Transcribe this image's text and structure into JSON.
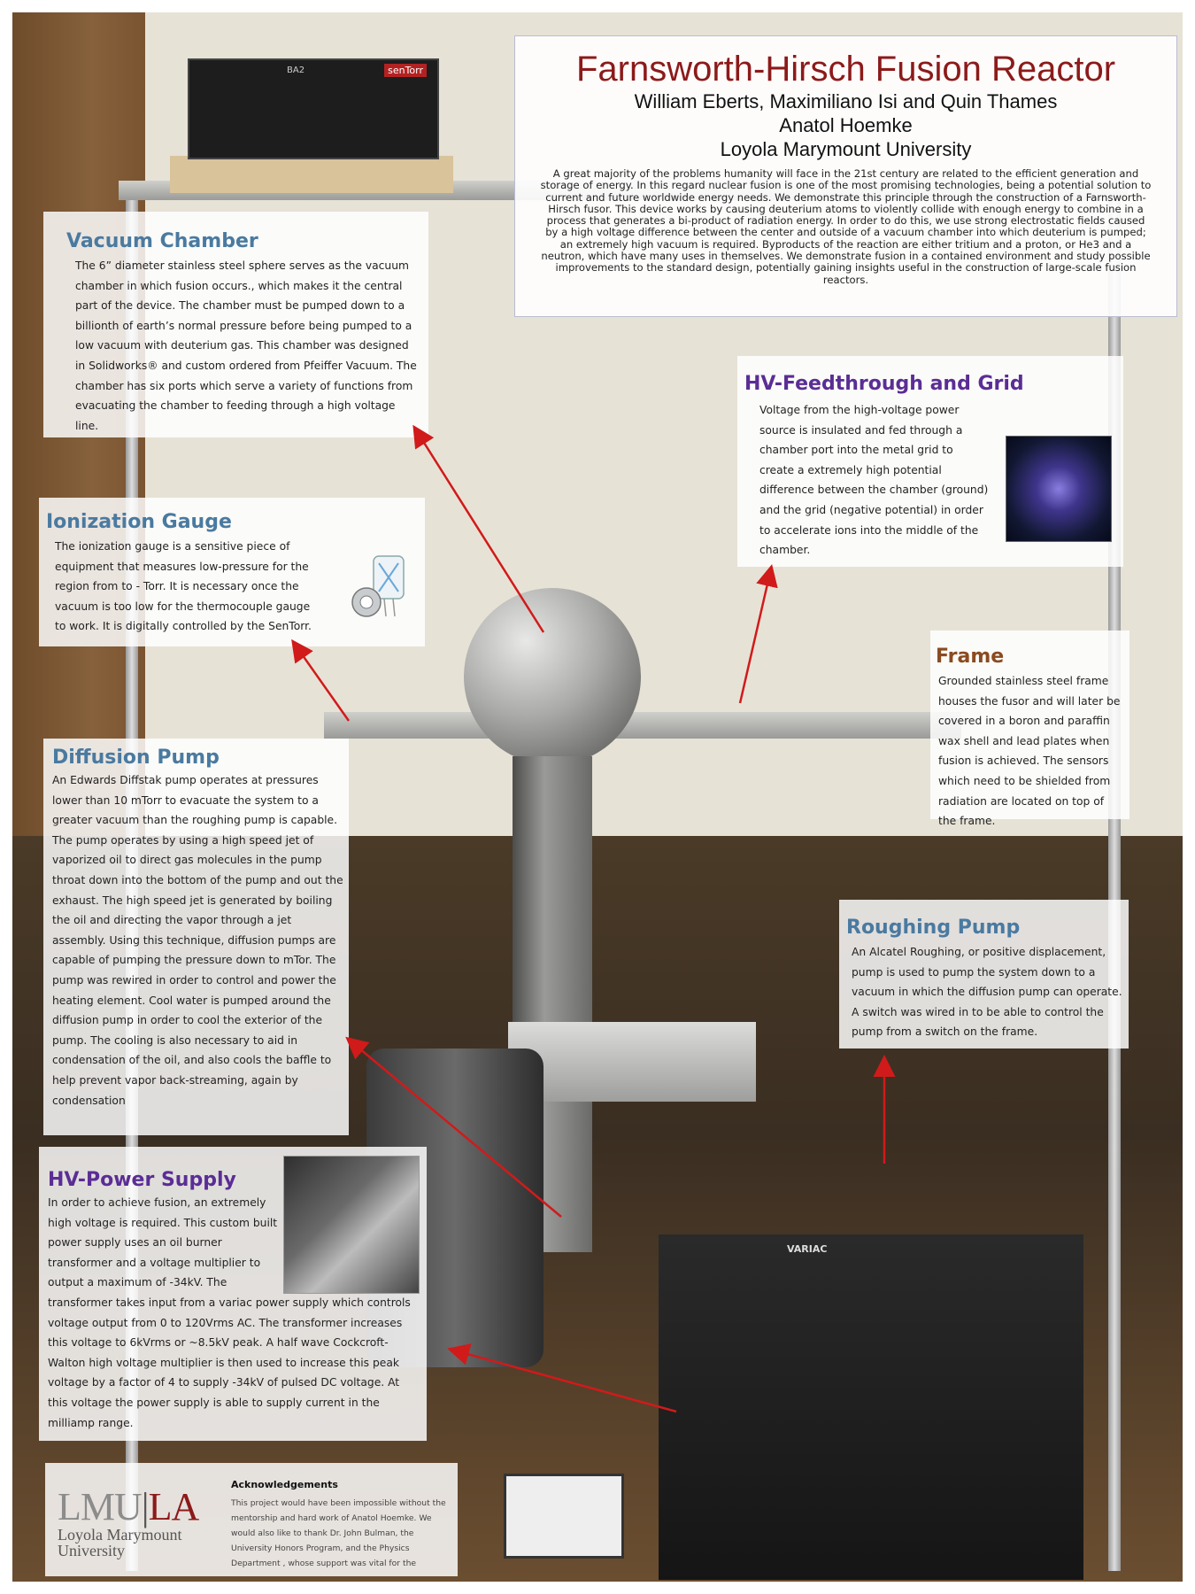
{
  "title": {
    "heading": "Farnsworth-Hirsch Fusion Reactor",
    "authors": "William Eberts, Maximiliano Isi and Quin Thames",
    "advisor": "Anatol Hoemke",
    "institution": "Loyola Marymount University",
    "abstract": "A great majority of the problems humanity will face in the 21st century are related to the efficient generation and storage of energy. In this regard nuclear fusion is one of the most promising technologies, being a potential solution to current and future worldwide energy needs. We demonstrate this principle through the construction of a Farnsworth-Hirsch fusor. This device works by causing deuterium atoms to violently collide with enough energy to combine in a process that generates a bi-product of radiation energy. In order to do this, we use strong electrostatic fields caused by a high voltage difference between the center and outside of a vacuum chamber into which deuterium is pumped; an extremely high vacuum is required. Byproducts of the reaction are either tritium and a proton, or He3 and a neutron, which have many uses in themselves. We demonstrate fusion in a contained environment and study possible improvements to the standard design, potentially gaining insights useful in the construction of large-scale fusion reactors."
  },
  "sections": {
    "vacuum_chamber": {
      "title": "Vacuum Chamber",
      "body": "The 6” diameter stainless steel sphere serves as the vacuum chamber in which fusion occurs., which makes it the central part of the device.  The chamber must be pumped down to a billionth of earth’s normal pressure before being pumped to a low vacuum with deuterium gas.  This chamber was designed in Solidworks® and custom ordered from Pfeiffer Vacuum.  The chamber has six ports which serve a variety of functions from evacuating the chamber to feeding through a high voltage line."
    },
    "ionization_gauge": {
      "title": "Ionization Gauge",
      "body": "The ionization gauge is a sensitive piece of equipment that measures low-pressure for the region from  to - Torr. It is necessary once the vacuum is too low for the thermocouple gauge to work. It is digitally controlled by the SenTorr."
    },
    "diffusion_pump": {
      "title": "Diffusion Pump",
      "body": "An Edwards Diffstak pump operates at pressures lower than 10 mTorr to evacuate the system to a greater vacuum than the roughing pump is capable.  The pump operates by using a high speed jet of vaporized oil to direct gas molecules in the pump throat down into the bottom of the pump and out the exhaust. The high speed jet is generated by boiling the oil and directing the vapor through a jet assembly. Using this technique, diffusion pumps are capable of pumping the pressure down to mTor. The pump was rewired in order to control and power the heating element.  Cool water is pumped around the diffusion pump in order to cool the exterior of the pump. The cooling is also necessary to aid in condensation of the oil, and also cools the baffle to help prevent vapor back-streaming, again by condensation"
    },
    "hv_power_supply": {
      "title": "HV-Power Supply",
      "body_top": "In order to achieve fusion, an extremely high voltage is required. This custom built power supply uses an oil burner transformer and a voltage multiplier to output a maximum of -34kV.  The",
      "body_bottom": " transformer takes input from a variac power supply which controls voltage output from 0 to 120Vrms AC.  The transformer increases this voltage to 6kVrms or ~8.5kV peak.  A half wave Cockcroft-Walton high voltage multiplier is then used to increase this peak voltage by a factor of 4 to supply -34kV of pulsed DC voltage.  At this voltage the power supply is able to supply current in the milliamp range."
    },
    "hv_feedthrough": {
      "title": "HV-Feedthrough and Grid",
      "body": "Voltage from the high-voltage power source is insulated and fed through a chamber port into the metal grid to create a extremely high potential difference between the chamber (ground) and the grid (negative potential) in order to accelerate ions into the middle of the chamber."
    },
    "frame": {
      "title": "Frame",
      "body": "Grounded stainless steel frame houses the fusor and will later be covered in a boron and paraffin wax shell and lead plates when fusion is achieved. The sensors which need to be shielded from radiation are located on top of the frame."
    },
    "roughing_pump": {
      "title": "Roughing Pump",
      "body": "An Alcatel Roughing, or positive displacement, pump is used to pump the system down to a vacuum in which the diffusion pump can operate.  A switch was wired in to be able to control the pump from a switch on the frame."
    }
  },
  "acknowledgements": {
    "title": "Acknowledgements",
    "body": "This project would have been impossible without the mentorship and hard work of Anatol Hoemke. We would also like to thank  Dr. John Bulman, the University Honors Program, and the Physics Department , whose support was vital for the"
  },
  "logo": {
    "lmu": "LMU",
    "la": "LA",
    "university_line1": "Loyola Marymount",
    "university_line2": "University"
  },
  "photo_labels": {
    "controller_brand": "senTorr",
    "controller_model": "BA2",
    "variac_label": "VARIAC"
  },
  "colors": {
    "title_red": "#8c1a1a",
    "section_blue": "#4a7aa0",
    "section_purple": "#5b2d95",
    "section_brown": "#8a4b20",
    "arrow_red": "#d11a1a"
  }
}
